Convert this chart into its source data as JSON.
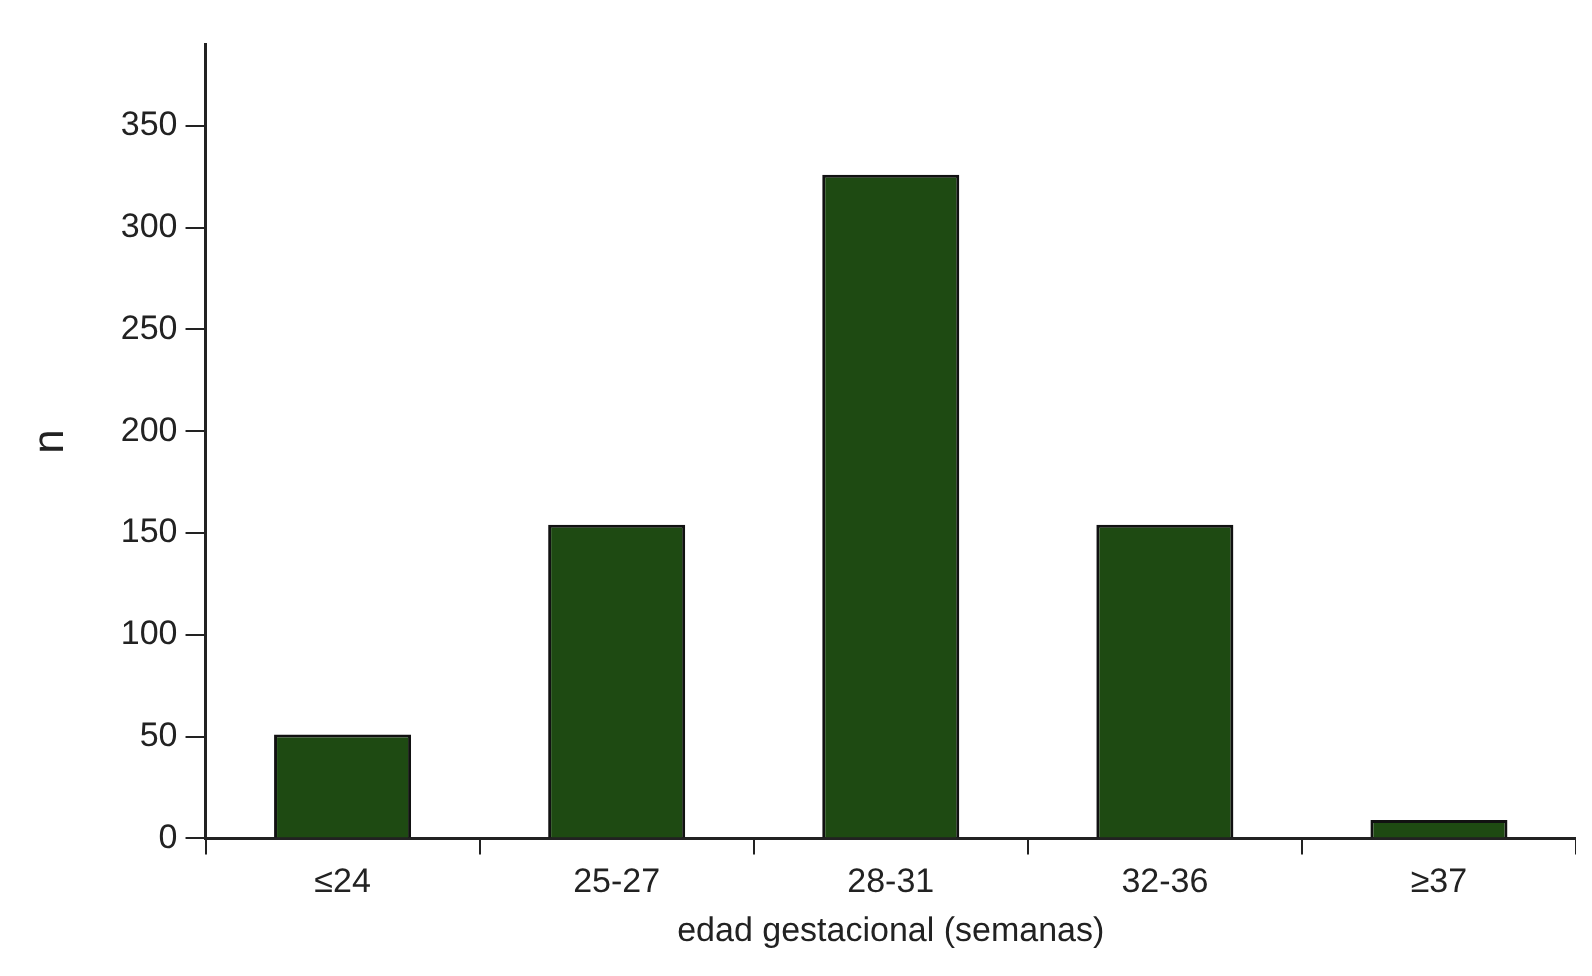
{
  "chart_data": {
    "type": "bar",
    "xlabel": "edad gestacional (semanas)",
    "ylabel": "n",
    "categories": [
      "≤24",
      "25-27",
      "28-31",
      "32-36",
      "≥37"
    ],
    "values": [
      51,
      154,
      326,
      154,
      9
    ],
    "color": "#1e4a12",
    "ylim": [
      0,
      390
    ],
    "yticks": [
      0,
      50,
      100,
      150,
      200,
      250,
      300,
      350
    ],
    "grid": false,
    "legend": false
  }
}
